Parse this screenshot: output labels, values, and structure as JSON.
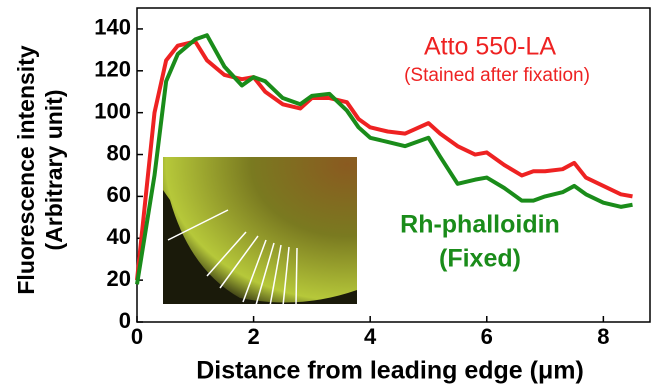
{
  "chart_data": {
    "type": "line",
    "xlabel": "Distance from leading edge (μm)",
    "ylabel": [
      "Fluorescence intensity",
      "(Arbitrary unit)"
    ],
    "x": [
      0,
      0.3,
      0.5,
      0.7,
      1.0,
      1.2,
      1.5,
      1.8,
      2.0,
      2.2,
      2.5,
      2.8,
      3.0,
      3.3,
      3.6,
      3.8,
      4.0,
      4.3,
      4.6,
      5.0,
      5.2,
      5.5,
      5.8,
      6.0,
      6.3,
      6.6,
      6.8,
      7.0,
      7.3,
      7.5,
      7.7,
      8.0,
      8.3,
      8.5
    ],
    "series": [
      {
        "name": "Atto 550-LA",
        "note": "(Stained after fixation)",
        "color": "#ee2222",
        "values": [
          20,
          100,
          125,
          132,
          134,
          125,
          118,
          116,
          117,
          110,
          104,
          102,
          107,
          107,
          105,
          97,
          93,
          91,
          90,
          95,
          90,
          84,
          80,
          81,
          75,
          70,
          72,
          72,
          73,
          76,
          69,
          65,
          61,
          60
        ]
      },
      {
        "name": "Rh-phalloidin",
        "note": "(Fixed)",
        "color": "#1a8c1a",
        "values": [
          18,
          70,
          115,
          128,
          135,
          137,
          122,
          113,
          117,
          115,
          107,
          104,
          108,
          109,
          101,
          93,
          88,
          86,
          84,
          88,
          79,
          66,
          68,
          69,
          64,
          58,
          58,
          60,
          62,
          65,
          61,
          57,
          55,
          56
        ]
      }
    ],
    "xlim": [
      0,
      8.8
    ],
    "ylim": [
      0,
      150
    ],
    "xticks": [
      0,
      2,
      4,
      6,
      8
    ],
    "yticks": [
      0,
      20,
      40,
      60,
      80,
      100,
      120,
      140
    ]
  }
}
